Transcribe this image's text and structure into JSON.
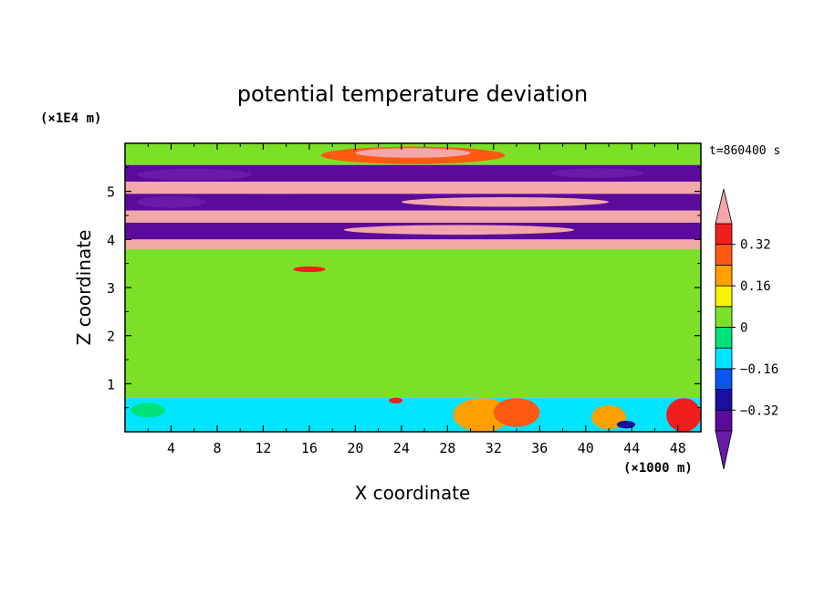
{
  "chart_data": {
    "type": "heatmap",
    "title": "potential temperature deviation",
    "xlabel": "X coordinate",
    "ylabel": "Z coordinate",
    "x_unit_label": "(×1000 m)",
    "y_unit_label": "(×1E4 m)",
    "time_label": "t=860400 s",
    "xlim": [
      0,
      50
    ],
    "ylim": [
      0,
      6
    ],
    "x_ticks": [
      4,
      8,
      12,
      16,
      20,
      24,
      28,
      32,
      36,
      40,
      44,
      48
    ],
    "x_tick_labels": [
      "4",
      "8",
      "12",
      "16",
      "20",
      "24",
      "28",
      "32",
      "36",
      "40",
      "44",
      "48"
    ],
    "y_ticks": [
      1,
      2,
      3,
      4,
      5
    ],
    "y_tick_labels": [
      "1",
      "2",
      "3",
      "4",
      "5"
    ],
    "colorbar": {
      "levels": [
        -0.4,
        -0.32,
        -0.24,
        -0.16,
        -0.08,
        0,
        0.08,
        0.16,
        0.24,
        0.32,
        0.4
      ],
      "labels": [
        {
          "value": 0.32,
          "text": "0.32"
        },
        {
          "value": 0.16,
          "text": "0.16"
        },
        {
          "value": 0,
          "text": "0"
        },
        {
          "value": -0.16,
          "text": "−0.16"
        },
        {
          "value": -0.32,
          "text": "−0.32"
        }
      ],
      "colors": [
        "#5b0a9c",
        "#1a0f9e",
        "#0a55ee",
        "#00e5ff",
        "#00e27a",
        "#7de028",
        "#f5f500",
        "#ffa000",
        "#ff5a14",
        "#f01e1e"
      ],
      "over_color": "#f2a8a8",
      "under_color": "#6a1aa8"
    },
    "bands": [
      {
        "z": [
          5.55,
          6.0
        ],
        "value": 0.04
      },
      {
        "z": [
          5.2,
          5.55
        ],
        "value": -0.36
      },
      {
        "z": [
          4.95,
          5.2
        ],
        "value": 0.42
      },
      {
        "z": [
          4.6,
          4.95
        ],
        "value": -0.38
      },
      {
        "z": [
          4.35,
          4.6
        ],
        "value": 0.41
      },
      {
        "z": [
          4.0,
          4.35
        ],
        "value": -0.37
      },
      {
        "z": [
          3.8,
          4.0
        ],
        "value": 0.41
      },
      {
        "z": [
          0.7,
          3.8
        ],
        "value": 0.0
      },
      {
        "z": [
          0.0,
          0.7
        ],
        "value": -0.1
      }
    ],
    "blobs": [
      {
        "x": 25,
        "z": 5.75,
        "rx": 8,
        "rz": 0.18,
        "value": 0.3
      },
      {
        "x": 25,
        "z": 5.8,
        "rx": 5,
        "rz": 0.1,
        "value": 0.42
      },
      {
        "x": 6,
        "z": 5.35,
        "rx": 5,
        "rz": 0.12,
        "value": -0.42
      },
      {
        "x": 41,
        "z": 5.38,
        "rx": 4,
        "rz": 0.1,
        "value": -0.42
      },
      {
        "x": 13,
        "z": 5.05,
        "rx": 7,
        "rz": 0.1,
        "value": 0.42
      },
      {
        "x": 33,
        "z": 4.78,
        "rx": 9,
        "rz": 0.1,
        "value": 0.42
      },
      {
        "x": 4,
        "z": 4.78,
        "rx": 3,
        "rz": 0.12,
        "value": -0.42
      },
      {
        "x": 29,
        "z": 4.2,
        "rx": 10,
        "rz": 0.1,
        "value": 0.42
      },
      {
        "x": 16,
        "z": 3.38,
        "rx": 1.4,
        "rz": 0.06,
        "value": 0.32
      },
      {
        "x": 31,
        "z": 0.35,
        "rx": 2.5,
        "rz": 0.35,
        "value": 0.2
      },
      {
        "x": 34,
        "z": 0.4,
        "rx": 2,
        "rz": 0.3,
        "value": 0.3
      },
      {
        "x": 48.5,
        "z": 0.35,
        "rx": 1.5,
        "rz": 0.35,
        "value": 0.32
      },
      {
        "x": 42,
        "z": 0.3,
        "rx": 1.5,
        "rz": 0.25,
        "value": 0.16
      },
      {
        "x": 15,
        "z": 0.25,
        "rx": 3.5,
        "rz": 0.25,
        "value": -0.16
      },
      {
        "x": 9,
        "z": 0.2,
        "rx": 1.5,
        "rz": 0.15,
        "value": -0.16
      },
      {
        "x": 43.5,
        "z": 0.15,
        "rx": 0.8,
        "rz": 0.08,
        "value": -0.32
      },
      {
        "x": 2,
        "z": 0.45,
        "rx": 1.5,
        "rz": 0.15,
        "value": -0.08
      },
      {
        "x": 23.5,
        "z": 0.65,
        "rx": 0.6,
        "rz": 0.06,
        "value": 0.36
      },
      {
        "x": 8,
        "z": 2.9,
        "rx": 2,
        "rz": 0.08,
        "value": 0.04
      },
      {
        "x": 30,
        "z": 2.4,
        "rx": 3,
        "rz": 0.07,
        "value": 0.04
      },
      {
        "x": 15,
        "z": 1.6,
        "rx": 3,
        "rz": 0.07,
        "value": 0.04
      },
      {
        "x": 40,
        "z": 1.2,
        "rx": 3,
        "rz": 0.08,
        "value": 0.04
      },
      {
        "x": 24,
        "z": 3.1,
        "rx": 4,
        "rz": 0.07,
        "value": 0.04
      }
    ]
  }
}
